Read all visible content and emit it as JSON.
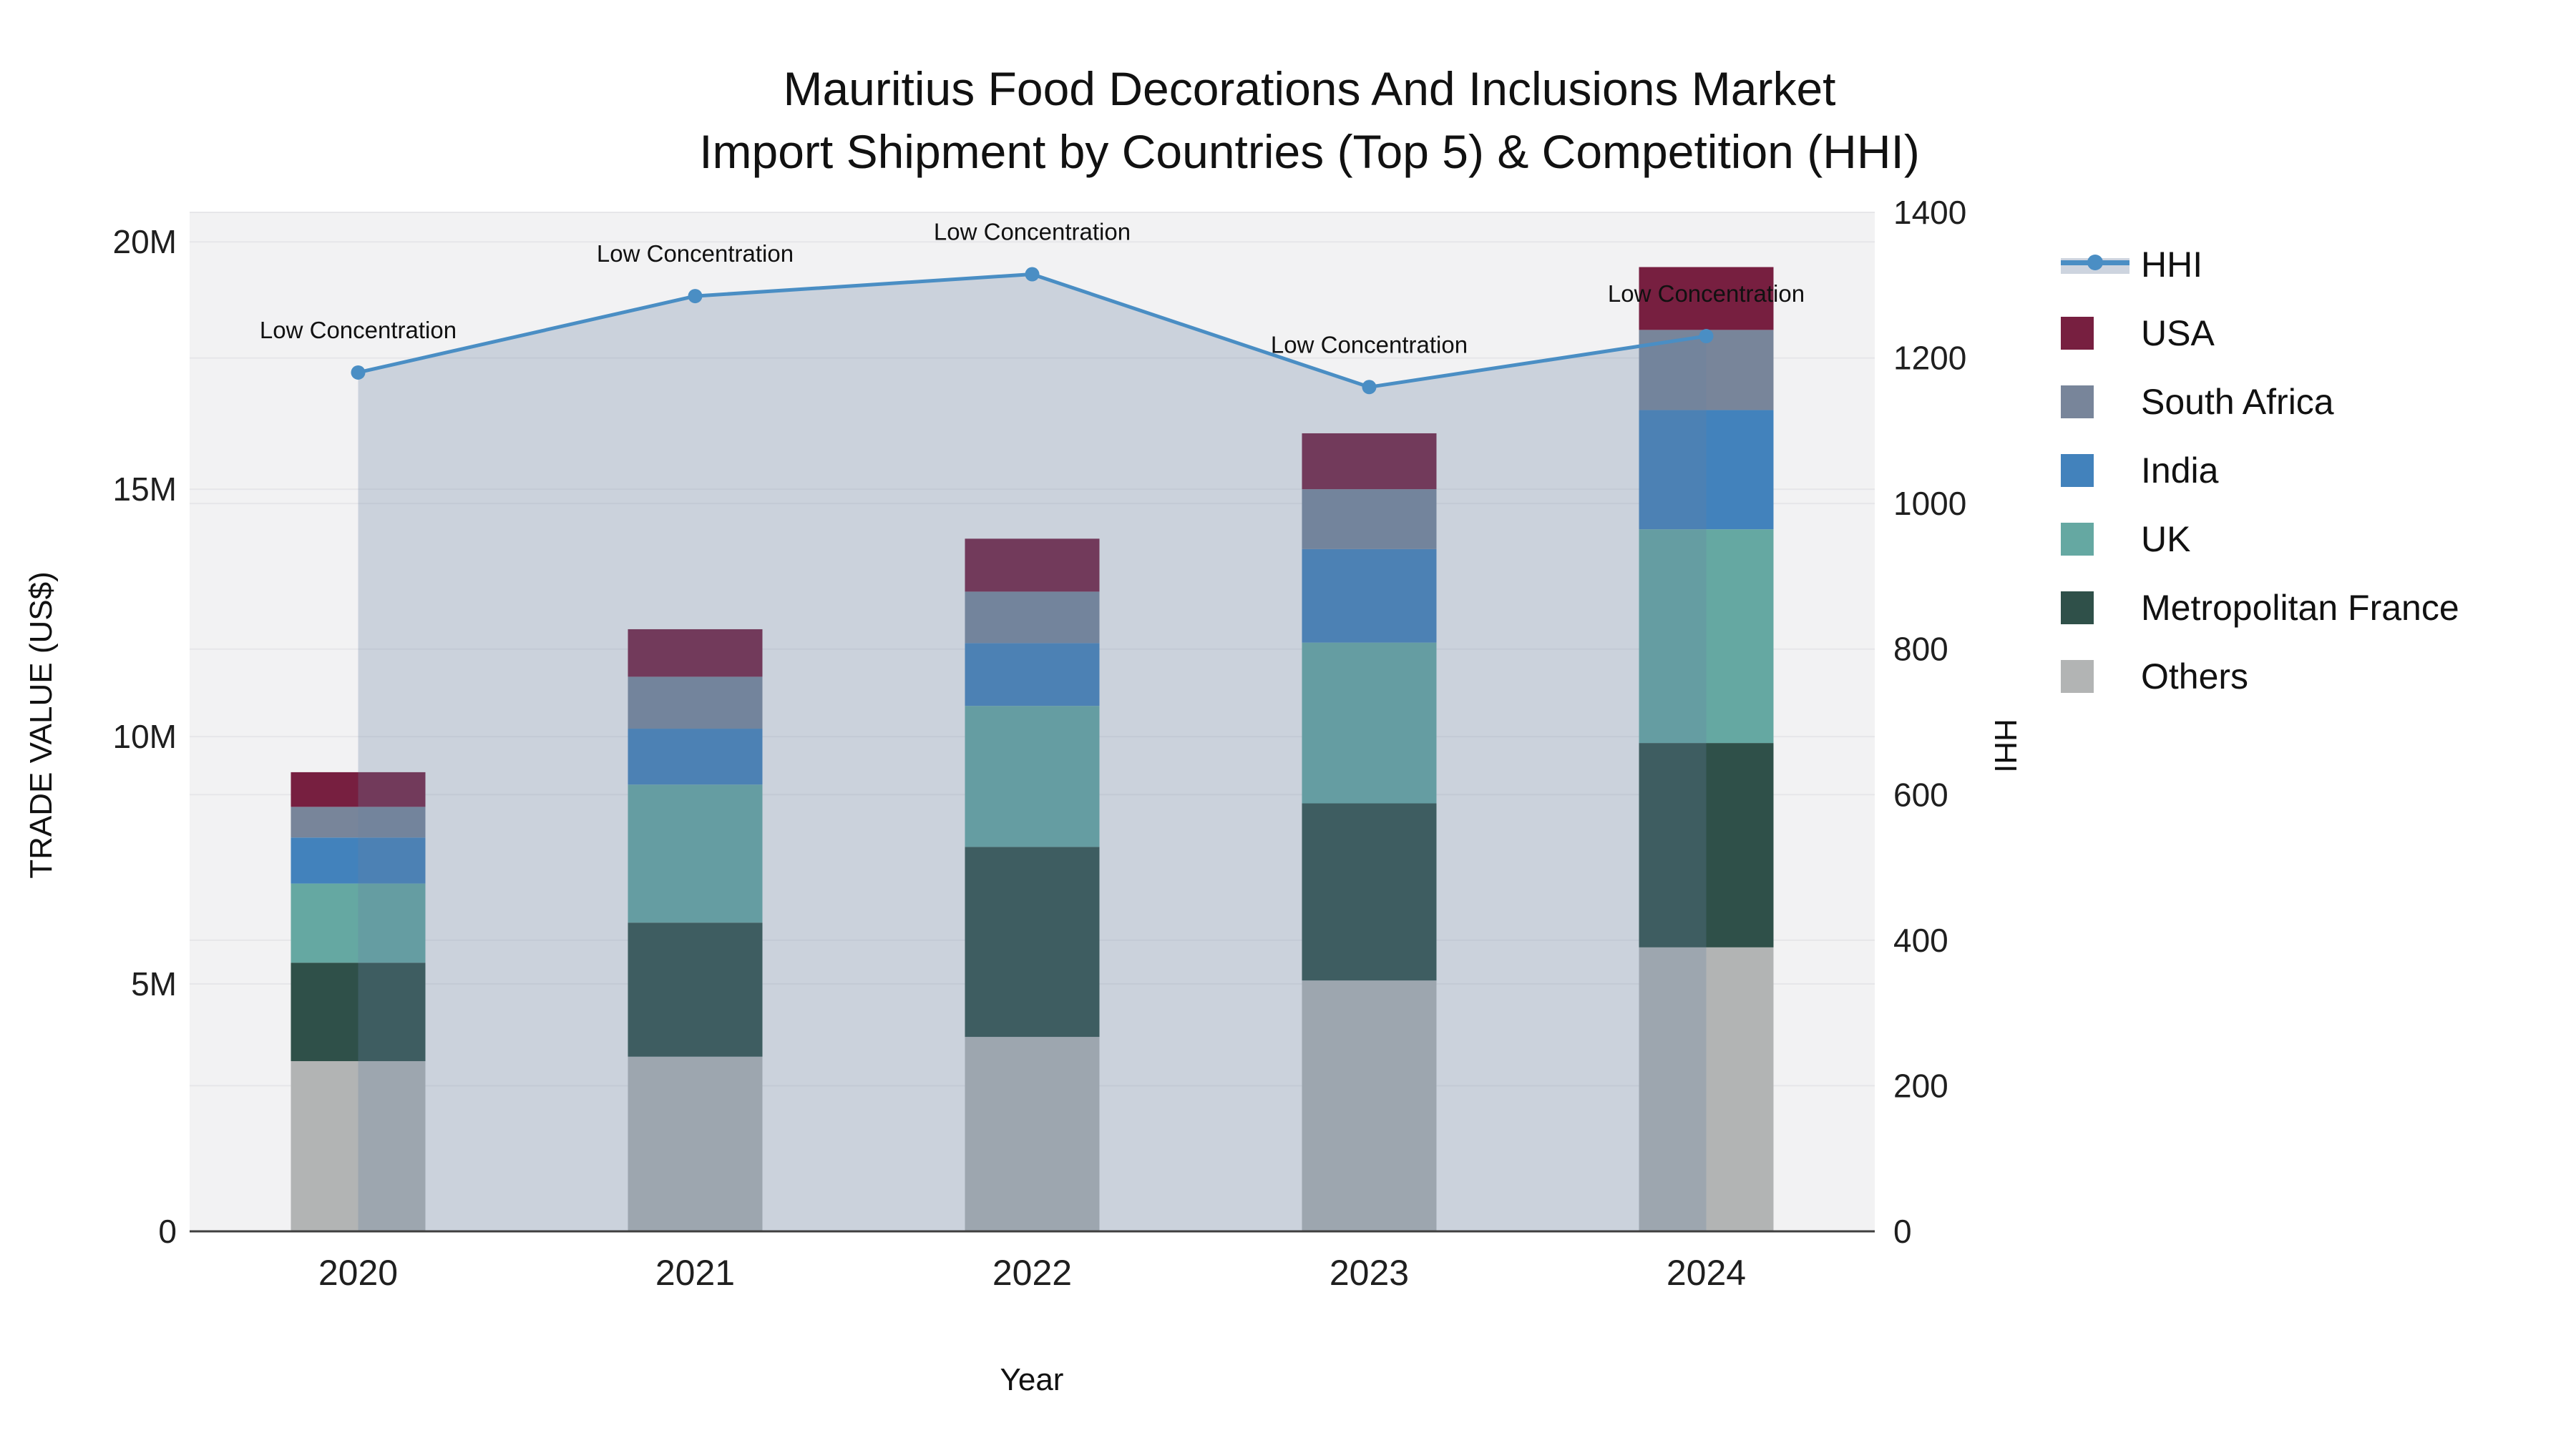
{
  "title": {
    "line1": "Mauritius Food Decorations And Inclusions Market",
    "line2": "Import Shipment by Countries (Top 5) & Competition (HHI)"
  },
  "axes": {
    "left_title": "TRADE VALUE (US$)",
    "bottom_title": "Year",
    "right_title": "HHI",
    "left_ticks": [
      {
        "label": "0",
        "value": 0
      },
      {
        "label": "5M",
        "value": 5
      },
      {
        "label": "10M",
        "value": 10
      },
      {
        "label": "15M",
        "value": 15
      },
      {
        "label": "20M",
        "value": 20
      }
    ],
    "right_ticks": [
      {
        "label": "0",
        "value": 0
      },
      {
        "label": "200",
        "value": 200
      },
      {
        "label": "400",
        "value": 400
      },
      {
        "label": "600",
        "value": 600
      },
      {
        "label": "800",
        "value": 800
      },
      {
        "label": "1000",
        "value": 1000
      },
      {
        "label": "1200",
        "value": 1200
      },
      {
        "label": "1400",
        "value": 1400
      }
    ]
  },
  "legend": [
    {
      "label": "HHI",
      "type": "line",
      "color": "#4a8ec4"
    },
    {
      "label": "USA",
      "type": "square",
      "color": "#771f40"
    },
    {
      "label": "South Africa",
      "type": "square",
      "color": "#78859a"
    },
    {
      "label": "India",
      "type": "square",
      "color": "#4282bc"
    },
    {
      "label": "UK",
      "type": "square",
      "color": "#65a8a2"
    },
    {
      "label": "Metropolitan France",
      "type": "square",
      "color": "#2f5049"
    },
    {
      "label": "Others",
      "type": "square",
      "color": "#b2b4b4"
    }
  ],
  "chart_data": {
    "type": "bar",
    "subtype": "stacked-bars-with-line",
    "categories": [
      "2020",
      "2021",
      "2022",
      "2023",
      "2024"
    ],
    "series": [
      {
        "name": "Others",
        "color": "#b2b4b4",
        "values": [
          3.44,
          3.53,
          3.93,
          5.07,
          5.74
        ]
      },
      {
        "name": "Metropolitan France",
        "color": "#2f5049",
        "values": [
          1.99,
          2.71,
          3.84,
          3.58,
          4.13
        ]
      },
      {
        "name": "UK",
        "color": "#65a8a2",
        "values": [
          1.6,
          2.79,
          2.85,
          3.25,
          4.32
        ]
      },
      {
        "name": "India",
        "color": "#4282bc",
        "values": [
          0.93,
          1.13,
          1.27,
          1.89,
          2.41
        ]
      },
      {
        "name": "South Africa",
        "color": "#78859a",
        "values": [
          0.62,
          1.05,
          1.04,
          1.21,
          1.62
        ]
      },
      {
        "name": "USA",
        "color": "#771f40",
        "values": [
          0.7,
          0.96,
          1.07,
          1.13,
          1.27
        ]
      }
    ],
    "bar_totals_musd": [
      9.28,
      12.17,
      14.0,
      16.13,
      19.49
    ],
    "line": {
      "name": "HHI",
      "values": [
        1180,
        1285,
        1315,
        1160,
        1230
      ],
      "color": "#4a8ec4",
      "area_fill": "rgba(104,128,162,0.28)",
      "annotation_text": "Low Concentration"
    },
    "title": "Mauritius Food Decorations And Inclusions Market Import Shipment by Countries (Top 5) & Competition (HHI)",
    "xlabel": "Year",
    "ylabel": "TRADE VALUE (US$)",
    "y2label": "HHI",
    "ylim": [
      0,
      20.61
    ],
    "y2lim": [
      0,
      1401
    ],
    "grid": true,
    "legend_position": "right",
    "plot_bg": "#f2f2f3",
    "grid_color": "#e6e6e9",
    "axisline_color": "#3f3f3f"
  }
}
